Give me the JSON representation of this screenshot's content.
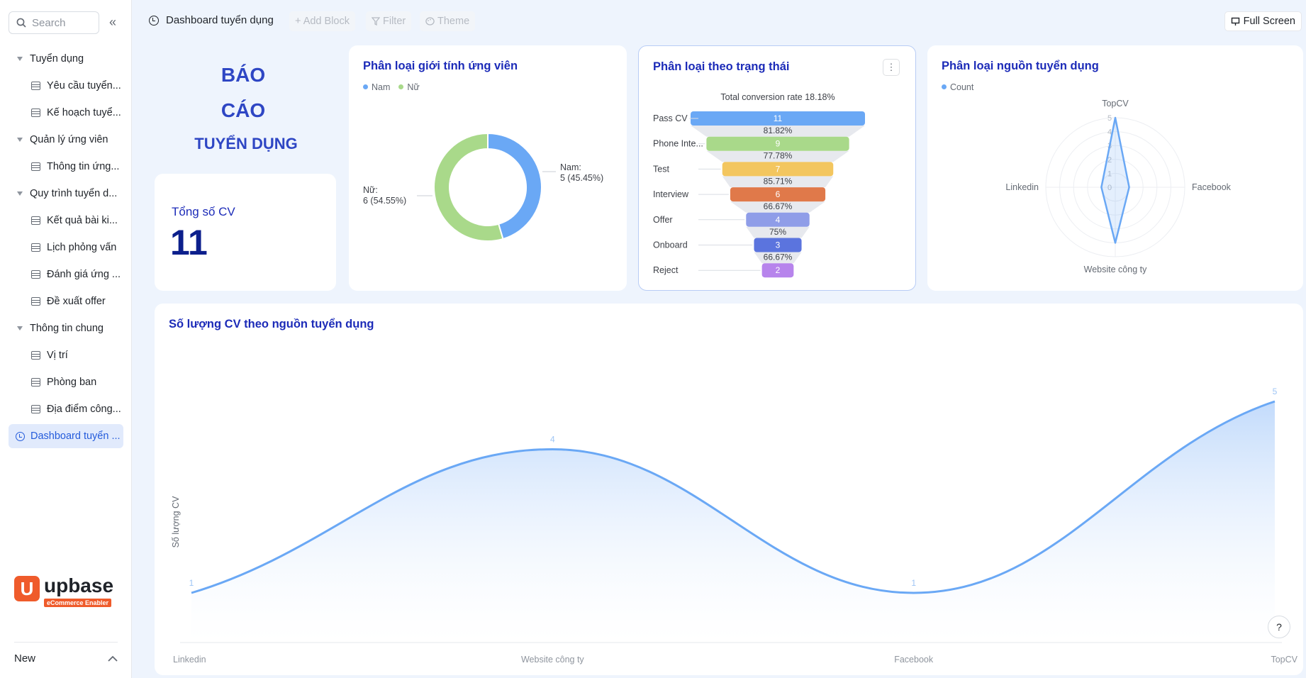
{
  "sidebar": {
    "search_placeholder": "Search",
    "collapse_icon": "«",
    "groups": [
      {
        "label": "Tuyển dụng",
        "items": [
          "Yêu cầu tuyển...",
          "Kế hoạch tuyể..."
        ]
      },
      {
        "label": "Quản lý ứng viên",
        "items": [
          "Thông tin ứng..."
        ]
      },
      {
        "label": "Quy trình tuyển d...",
        "items": [
          "Kết quả bài ki...",
          "Lịch phỏng vấn",
          "Đánh giá ứng ...",
          "Đề xuất offer"
        ]
      },
      {
        "label": "Thông tin chung",
        "items": [
          "Vị trí",
          "Phòng ban",
          "Địa điểm công..."
        ]
      }
    ],
    "active_item": "Dashboard tuyển ...",
    "logo_mark": "U",
    "logo_word": "upbase",
    "logo_tagline": "eCommerce Enabler",
    "new_label": "New"
  },
  "topbar": {
    "title": "Dashboard tuyển dụng",
    "add_block": "+ Add Block",
    "filter": "Filter",
    "theme": "Theme",
    "full_screen": "Full Screen"
  },
  "report": {
    "line1": "BÁO",
    "line2": "CÁO",
    "line3": "TUYỂN DỤNG"
  },
  "total": {
    "label": "Tổng số CV",
    "value": "11"
  },
  "colors": {
    "accent": "#245bdb",
    "title": "#1c2bb8",
    "nam": "#6aa8f5",
    "nu": "#a9d98a",
    "line": "#6aa8f5"
  },
  "gender_card": {
    "title": "Phân loại giới tính ứng viên",
    "legend": [
      "Nam",
      "Nữ"
    ]
  },
  "funnel_card": {
    "title": "Phân loại theo trạng thái",
    "conversion": "Total conversion rate 18.18%"
  },
  "radar_card": {
    "title": "Phân loại nguồn tuyển dụng",
    "legend": "Count"
  },
  "line_card": {
    "title": "Số lượng CV theo nguồn tuyển dụng",
    "ylabel": "Số lượng CV"
  },
  "chart_data": [
    {
      "type": "pie",
      "title": "Phân loại giới tính ứng viên",
      "donut": true,
      "categories": [
        "Nam",
        "Nữ"
      ],
      "values": [
        5,
        6
      ],
      "labels": [
        "Nam:\n5 (45.45%)",
        "Nữ:\n6 (54.55%)"
      ],
      "colors": [
        "#6aa8f5",
        "#a9d98a"
      ],
      "legend": "top-left"
    },
    {
      "type": "bar",
      "subtype": "funnel",
      "title": "Phân loại theo trạng thái",
      "categories": [
        "Pass CV",
        "Phone Inte...",
        "Test",
        "Interview",
        "Offer",
        "Onboard",
        "Reject"
      ],
      "values": [
        11,
        9,
        7,
        6,
        4,
        3,
        2
      ],
      "rates": [
        "81.82%",
        "77.78%",
        "85.71%",
        "66.67%",
        "75%",
        "66.67%"
      ],
      "colors": [
        "#6aa8f5",
        "#a9d98a",
        "#f3c65f",
        "#e0794a",
        "#8f9de8",
        "#5b74de",
        "#b784ec"
      ],
      "annotation": "Total conversion rate 18.18%"
    },
    {
      "type": "radar",
      "title": "Phân loại nguồn tuyển dụng",
      "categories": [
        "TopCV",
        "Facebook",
        "Website công ty",
        "Linkedin"
      ],
      "values": [
        5,
        1,
        4,
        1
      ],
      "ticks": [
        "0",
        "1",
        "2",
        "3",
        "4",
        "5"
      ],
      "rmax": 5,
      "series_name": "Count"
    },
    {
      "type": "area",
      "title": "Số lượng CV theo nguồn tuyển dụng",
      "categories": [
        "Linkedin",
        "Website công ty",
        "Facebook",
        "TopCV"
      ],
      "values": [
        1,
        4,
        1,
        5
      ],
      "ylabel": "Số lượng CV",
      "ylim": [
        0,
        5
      ],
      "grid": false
    }
  ]
}
